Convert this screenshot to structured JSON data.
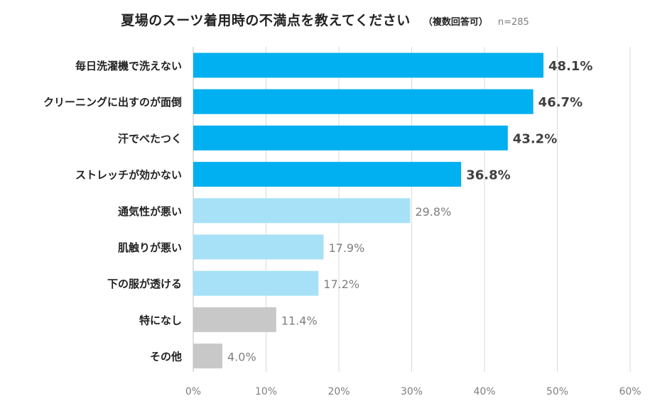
{
  "chart_data": {
    "type": "bar",
    "orientation": "horizontal",
    "title": "夏場のスーツ着用時の不満点を教えてください",
    "subtitle": "（複数回答可）",
    "sample_size": "n=285",
    "categories": [
      "毎日洗濯機で洗えない",
      "クリーニングに出すのが面倒",
      "汗でべたつく",
      "ストレッチが効かない",
      "通気性が悪い",
      "肌触りが悪い",
      "下の服が透ける",
      "特になし",
      "その他"
    ],
    "values": [
      48.1,
      46.7,
      43.2,
      36.8,
      29.8,
      17.9,
      17.2,
      11.4,
      4.0
    ],
    "value_labels": [
      "48.1%",
      "46.7%",
      "43.2%",
      "36.8%",
      "29.8%",
      "17.9%",
      "17.2%",
      "11.4%",
      "4.0%"
    ],
    "bar_colors": [
      "#00b0f0",
      "#00b0f0",
      "#00b0f0",
      "#00b0f0",
      "#a6e1f7",
      "#a6e1f7",
      "#a6e1f7",
      "#c8c8c8",
      "#c8c8c8"
    ],
    "label_emphasis": [
      true,
      true,
      true,
      true,
      false,
      false,
      false,
      false,
      false
    ],
    "xlim": [
      0,
      60
    ],
    "x_ticks": [
      0,
      10,
      20,
      30,
      40,
      50,
      60
    ],
    "x_tick_labels": [
      "0%",
      "10%",
      "20%",
      "30%",
      "40%",
      "50%",
      "60%"
    ],
    "grid": true,
    "legend": "none"
  }
}
